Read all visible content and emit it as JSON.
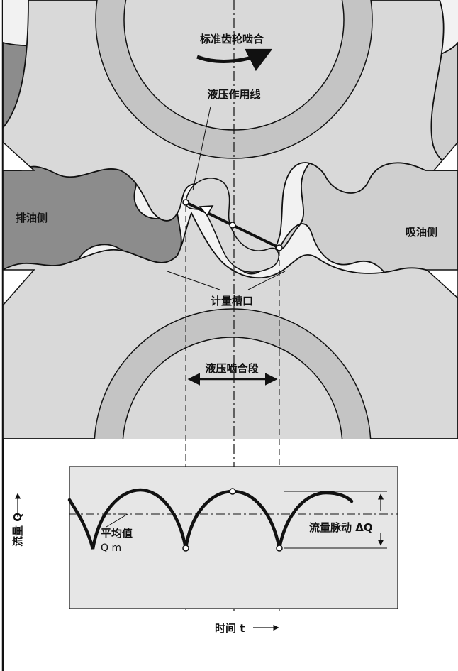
{
  "gear_section": {
    "top_gear_label": "标准齿轮啮合",
    "hydraulic_line_label": "液压作用线",
    "discharge_side_label": "排油侧",
    "suction_side_label": "吸油侧",
    "metering_slot_label": "计量槽口",
    "hydraulic_mesh_section_label": "液压啮合段"
  },
  "flow_chart": {
    "y_axis_label": "流量 Q",
    "x_axis_label": "时间 t",
    "mean_label": "平均值",
    "mean_symbol": "Q m",
    "pulsation_label": "流量脉动 ΔQ"
  },
  "colors": {
    "gear_fill": "#d9d9d9",
    "gear_ring": "#c4c4c4",
    "gear_dark": "#8c8c8c",
    "panel_fill": "#e6e6e6",
    "line": "#111111"
  }
}
